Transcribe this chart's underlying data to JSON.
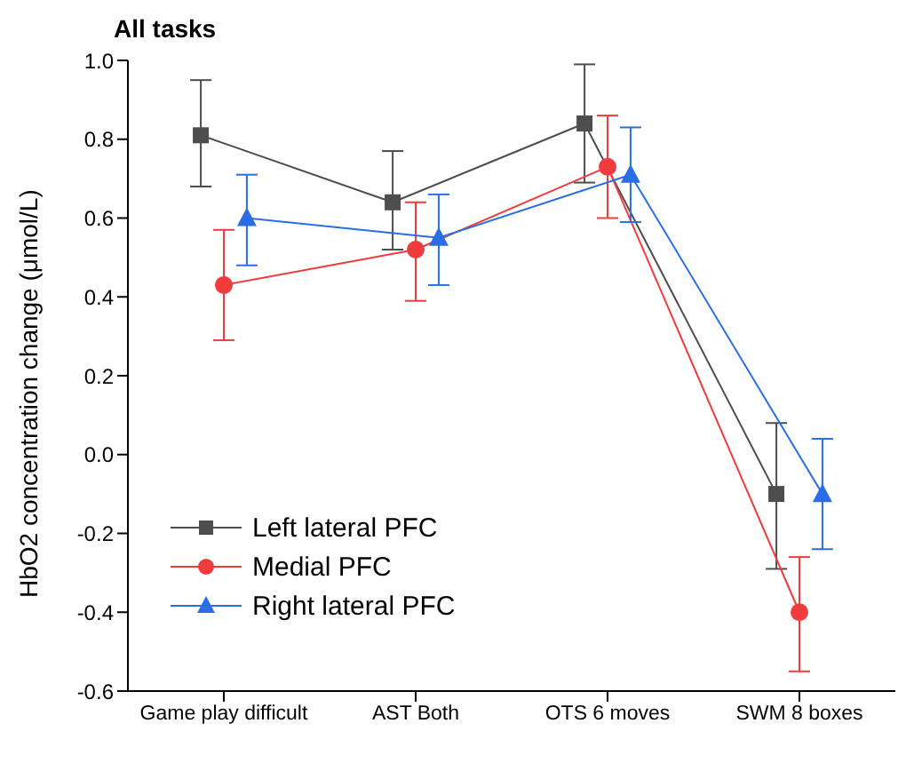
{
  "chart_data": {
    "type": "line",
    "title": "All tasks",
    "ylabel": "HbO2 concentration change (μmol/L)",
    "categories": [
      "Game play difficult",
      "AST Both",
      "OTS 6 moves",
      "SWM 8 boxes"
    ],
    "series": [
      {
        "name": "Left lateral PFC",
        "color": "#4d4d4d",
        "marker": "square",
        "values": [
          0.81,
          0.64,
          0.84,
          -0.1
        ],
        "errors": [
          [
            0.68,
            0.95
          ],
          [
            0.52,
            0.77
          ],
          [
            0.69,
            0.99
          ],
          [
            -0.29,
            0.08
          ]
        ]
      },
      {
        "name": "Medial PFC",
        "color": "#f03c3c",
        "marker": "circle",
        "values": [
          0.43,
          0.52,
          0.73,
          -0.4
        ],
        "errors": [
          [
            0.29,
            0.57
          ],
          [
            0.39,
            0.64
          ],
          [
            0.6,
            0.86
          ],
          [
            -0.55,
            -0.26
          ]
        ]
      },
      {
        "name": "Right lateral PFC",
        "color": "#2a6ee6",
        "marker": "triangle",
        "values": [
          0.6,
          0.55,
          0.71,
          -0.1
        ],
        "errors": [
          [
            0.48,
            0.71
          ],
          [
            0.43,
            0.66
          ],
          [
            0.59,
            0.83
          ],
          [
            -0.24,
            0.04
          ]
        ]
      }
    ],
    "ylim": [
      -0.6,
      1.0
    ],
    "yticks": [
      -0.6,
      -0.4,
      -0.2,
      {
        "value": 0,
        "label": "0.0"
      },
      0.2,
      0.4,
      0.6,
      0.8,
      {
        "value": 1,
        "label": "1.0"
      }
    ],
    "grid": false,
    "legend": "bottom left"
  }
}
